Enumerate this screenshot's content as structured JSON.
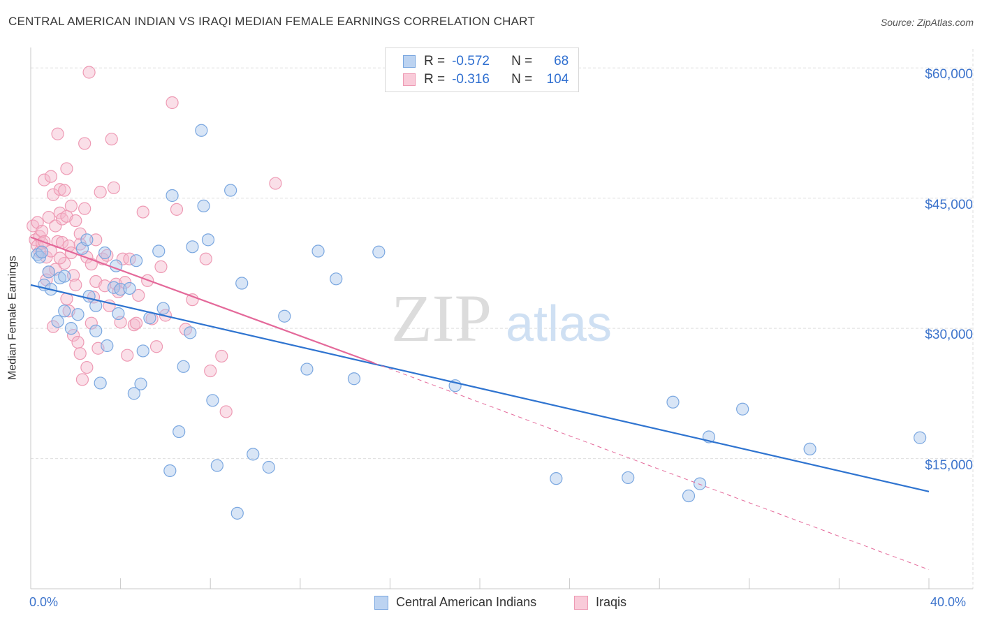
{
  "header": {
    "title": "CENTRAL AMERICAN INDIAN VS IRAQI MEDIAN FEMALE EARNINGS CORRELATION CHART",
    "source": "Source: ZipAtlas.com"
  },
  "watermark": {
    "zip": "ZIP",
    "atlas": "atlas"
  },
  "legend": {
    "rows": [
      {
        "r_label": "R =",
        "r_value": "-0.572",
        "n_label": "N =",
        "n_value": "68"
      },
      {
        "r_label": "R =",
        "r_value": "-0.316",
        "n_label": "N =",
        "n_value": "104"
      }
    ]
  },
  "bottom_legend": [
    "Central American Indians",
    "Iraqis"
  ],
  "colors": {
    "blue_fill": "#a9c6ec",
    "blue_stroke": "#7aa7e0",
    "blue_line": "#2f74d0",
    "pink_fill": "#f5b8cb",
    "pink_stroke": "#ee9ab4",
    "pink_line": "#e4699a",
    "tick_text": "#3d74cc",
    "grid": "#dedede"
  },
  "chart_data": {
    "type": "scatter",
    "title": "CENTRAL AMERICAN INDIAN VS IRAQI MEDIAN FEMALE EARNINGS CORRELATION CHART",
    "xlabel": "",
    "ylabel": "Median Female Earnings",
    "xlim": [
      0,
      40
    ],
    "ylim": [
      0,
      63000
    ],
    "x_tick_labels": [
      "0.0%",
      "40.0%"
    ],
    "y_ticks": [
      15000,
      30000,
      45000,
      60000
    ],
    "y_tick_labels": [
      "$15,000",
      "$30,000",
      "$45,000",
      "$60,000"
    ],
    "grid": true,
    "legend_position": "top-center",
    "series": [
      {
        "name": "Central American Indians",
        "color": "#a9c6ec",
        "trend": {
          "x": [
            0,
            40
          ],
          "y": [
            35000,
            11200
          ]
        },
        "points": [
          [
            0.3,
            38500
          ],
          [
            0.4,
            38200
          ],
          [
            0.5,
            38800
          ],
          [
            0.6,
            35000
          ],
          [
            0.8,
            36500
          ],
          [
            0.9,
            34500
          ],
          [
            1.2,
            30800
          ],
          [
            1.3,
            35800
          ],
          [
            1.5,
            36000
          ],
          [
            1.5,
            32000
          ],
          [
            1.8,
            30000
          ],
          [
            2.1,
            31600
          ],
          [
            2.3,
            39200
          ],
          [
            2.5,
            40200
          ],
          [
            2.6,
            33700
          ],
          [
            2.9,
            29700
          ],
          [
            2.9,
            32600
          ],
          [
            3.1,
            23700
          ],
          [
            3.3,
            38700
          ],
          [
            3.4,
            28000
          ],
          [
            3.7,
            34700
          ],
          [
            3.8,
            37200
          ],
          [
            3.9,
            31700
          ],
          [
            4.0,
            34500
          ],
          [
            4.4,
            34600
          ],
          [
            4.6,
            22500
          ],
          [
            4.7,
            37800
          ],
          [
            4.9,
            23600
          ],
          [
            5.0,
            27400
          ],
          [
            5.3,
            31200
          ],
          [
            5.7,
            38900
          ],
          [
            5.9,
            32300
          ],
          [
            6.2,
            13600
          ],
          [
            6.3,
            45300
          ],
          [
            6.6,
            18100
          ],
          [
            6.8,
            25600
          ],
          [
            7.1,
            29500
          ],
          [
            7.2,
            39400
          ],
          [
            7.6,
            52800
          ],
          [
            7.7,
            44100
          ],
          [
            7.9,
            40200
          ],
          [
            8.1,
            21700
          ],
          [
            8.3,
            14200
          ],
          [
            8.9,
            45900
          ],
          [
            9.2,
            8700
          ],
          [
            9.4,
            35200
          ],
          [
            9.9,
            15500
          ],
          [
            10.6,
            14000
          ],
          [
            11.3,
            31400
          ],
          [
            12.3,
            25300
          ],
          [
            12.8,
            38900
          ],
          [
            13.6,
            35700
          ],
          [
            14.4,
            24200
          ],
          [
            15.5,
            38800
          ],
          [
            18.9,
            23400
          ],
          [
            23.4,
            12700
          ],
          [
            26.6,
            12800
          ],
          [
            28.6,
            21500
          ],
          [
            29.3,
            10700
          ],
          [
            29.8,
            12100
          ],
          [
            30.2,
            17500
          ],
          [
            31.7,
            20700
          ],
          [
            34.7,
            16100
          ],
          [
            39.6,
            17400
          ]
        ]
      },
      {
        "name": "Iraqis",
        "color": "#f5b8cb",
        "trend": {
          "x": [
            0,
            15.3
          ],
          "y": [
            40500,
            26000
          ],
          "dashed_to": {
            "x": 40,
            "y": 2200
          }
        },
        "points": [
          [
            0.1,
            41800
          ],
          [
            0.2,
            40200
          ],
          [
            0.3,
            39500
          ],
          [
            0.3,
            42200
          ],
          [
            0.4,
            40600
          ],
          [
            0.4,
            38800
          ],
          [
            0.5,
            41200
          ],
          [
            0.5,
            39800
          ],
          [
            0.6,
            47100
          ],
          [
            0.6,
            40000
          ],
          [
            0.7,
            38200
          ],
          [
            0.8,
            42800
          ],
          [
            0.8,
            36500
          ],
          [
            0.9,
            47500
          ],
          [
            0.9,
            38900
          ],
          [
            1.0,
            45400
          ],
          [
            1.0,
            30200
          ],
          [
            1.1,
            41800
          ],
          [
            1.1,
            36800
          ],
          [
            1.2,
            52400
          ],
          [
            1.2,
            40000
          ],
          [
            1.3,
            46000
          ],
          [
            1.3,
            43300
          ],
          [
            1.4,
            42600
          ],
          [
            1.4,
            39900
          ],
          [
            1.5,
            45900
          ],
          [
            1.5,
            37500
          ],
          [
            1.6,
            48400
          ],
          [
            1.6,
            42900
          ],
          [
            1.7,
            39500
          ],
          [
            1.7,
            32000
          ],
          [
            1.8,
            44100
          ],
          [
            1.8,
            38700
          ],
          [
            1.9,
            36100
          ],
          [
            1.9,
            29200
          ],
          [
            2.0,
            42400
          ],
          [
            2.0,
            35000
          ],
          [
            2.1,
            28400
          ],
          [
            2.2,
            39700
          ],
          [
            2.2,
            27100
          ],
          [
            2.3,
            24100
          ],
          [
            2.4,
            51300
          ],
          [
            2.4,
            43800
          ],
          [
            2.5,
            38200
          ],
          [
            2.5,
            25500
          ],
          [
            2.6,
            59500
          ],
          [
            2.7,
            37400
          ],
          [
            2.7,
            30600
          ],
          [
            2.8,
            33600
          ],
          [
            2.9,
            40200
          ],
          [
            2.9,
            35400
          ],
          [
            3.0,
            27700
          ],
          [
            3.1,
            45700
          ],
          [
            3.2,
            38000
          ],
          [
            3.3,
            34900
          ],
          [
            3.4,
            38400
          ],
          [
            3.5,
            32600
          ],
          [
            3.6,
            51800
          ],
          [
            3.7,
            46200
          ],
          [
            3.8,
            35100
          ],
          [
            3.9,
            34200
          ],
          [
            4.0,
            30700
          ],
          [
            4.1,
            38000
          ],
          [
            4.2,
            35300
          ],
          [
            4.3,
            26900
          ],
          [
            4.4,
            38000
          ],
          [
            4.6,
            30400
          ],
          [
            4.7,
            30600
          ],
          [
            4.8,
            33800
          ],
          [
            5.0,
            43400
          ],
          [
            5.2,
            35500
          ],
          [
            5.4,
            31100
          ],
          [
            5.6,
            27900
          ],
          [
            5.8,
            37100
          ],
          [
            6.0,
            31500
          ],
          [
            6.3,
            56000
          ],
          [
            6.5,
            43700
          ],
          [
            6.9,
            29900
          ],
          [
            7.2,
            33300
          ],
          [
            7.8,
            38000
          ],
          [
            8.0,
            25100
          ],
          [
            8.5,
            26800
          ],
          [
            8.7,
            20400
          ],
          [
            10.9,
            46700
          ],
          [
            1.3,
            38100
          ],
          [
            2.2,
            40900
          ],
          [
            0.7,
            35600
          ],
          [
            1.6,
            33400
          ]
        ]
      }
    ]
  }
}
